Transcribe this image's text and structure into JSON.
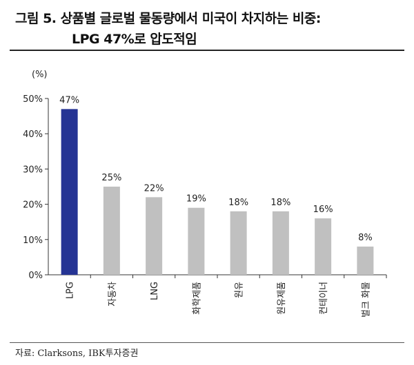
{
  "header": {
    "title_line1": "그림 5. 상품별 글로벌 물동량에서 미국이 차지하는 비중:",
    "title_line2": "LPG 47%로 압도적임"
  },
  "footer": {
    "source": "자료: Clarksons, IBK투자증권"
  },
  "colors": {
    "highlight": "#253494",
    "bar": "#c0c0c0"
  },
  "chart_data": {
    "type": "bar",
    "ylabel": "(%)",
    "ylim": [
      0,
      50
    ],
    "yticks": [
      "0%",
      "10%",
      "20%",
      "30%",
      "40%",
      "50%"
    ],
    "grid": false,
    "categories": [
      "LPG",
      "자동차",
      "LNG",
      "화학제품",
      "원유",
      "원유제품",
      "컨테이너",
      "벌크 화물"
    ],
    "values": [
      47,
      25,
      22,
      19,
      18,
      18,
      16,
      8
    ],
    "data_labels": [
      "47%",
      "25%",
      "22%",
      "19%",
      "18%",
      "18%",
      "16%",
      "8%"
    ],
    "highlight_index": 0
  }
}
